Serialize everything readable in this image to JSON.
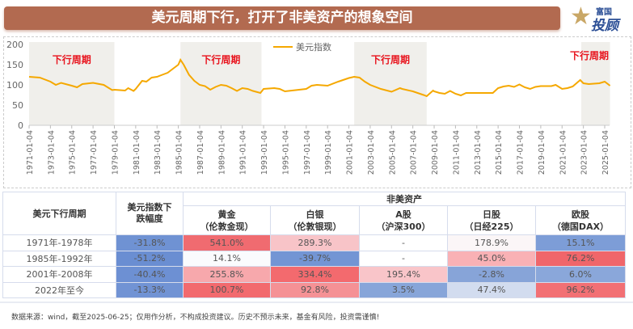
{
  "title": "美元周期下行，打开了非美资产的想象空间",
  "logo": {
    "line1": "富国",
    "line2": "投顾",
    "mark": "星"
  },
  "chart_data": {
    "type": "line",
    "legend": "美元指数",
    "legend_position": "top-center",
    "ylim": [
      0,
      200
    ],
    "yticks": [
      0,
      50,
      100,
      150,
      200
    ],
    "xticks": [
      "1971-01-04",
      "1973-01-04",
      "1975-01-04",
      "1977-01-04",
      "1979-01-04",
      "1981-01-04",
      "1983-01-04",
      "1985-01-04",
      "1987-01-04",
      "1989-01-04",
      "1991-01-04",
      "1993-01-04",
      "1995-01-04",
      "1997-01-04",
      "1999-01-04",
      "2001-01-04",
      "2003-01-04",
      "2005-01-04",
      "2007-01-04",
      "2009-01-04",
      "2011-01-04",
      "2013-01-04",
      "2015-01-04",
      "2017-01-04",
      "2019-01-04",
      "2021-01-04",
      "2023-01-04",
      "2025-01-04"
    ],
    "series_color": "#f5a800",
    "shaded_color": "#f0efeb",
    "shaded_periods": [
      {
        "start": 1971.0,
        "end": 1979.0,
        "label": "下行周期"
      },
      {
        "start": 1985.2,
        "end": 1992.8,
        "label": "下行周期"
      },
      {
        "start": 2001.5,
        "end": 2008.3,
        "label": "下行周期"
      },
      {
        "start": 2022.8,
        "end": 2025.5,
        "label": "下行周期"
      }
    ],
    "x": [
      1971,
      1972,
      1973,
      1973.5,
      1974,
      1975,
      1975.5,
      1976,
      1977,
      1978,
      1978.8,
      1979,
      1980,
      1980.3,
      1980.8,
      1981,
      1981.6,
      1982,
      1982.5,
      1983,
      1983.5,
      1984,
      1984.5,
      1985,
      1985.2,
      1985.5,
      1986,
      1986.5,
      1987,
      1987.5,
      1988,
      1988.5,
      1989,
      1989.5,
      1990,
      1990.5,
      1991,
      1991.5,
      1992,
      1992.7,
      1993,
      1994,
      1994.5,
      1995,
      1996,
      1997,
      1997.5,
      1998,
      1999,
      2000,
      2001,
      2001.5,
      2002,
      2002.5,
      2003,
      2004,
      2005,
      2005.8,
      2006,
      2007,
      2008,
      2008.3,
      2008.9,
      2009,
      2009.5,
      2010,
      2010.5,
      2011,
      2011.5,
      2012,
      2013,
      2014,
      2014.5,
      2015,
      2015.5,
      2016,
      2016.5,
      2017,
      2017.5,
      2018,
      2018.5,
      2019,
      2020,
      2020.4,
      2021,
      2021.5,
      2022,
      2022.7,
      2023,
      2023.5,
      2024,
      2024.5,
      2025,
      2025.5
    ],
    "y": [
      120,
      118,
      108,
      100,
      105,
      98,
      94,
      102,
      105,
      100,
      87,
      88,
      86,
      92,
      85,
      90,
      110,
      108,
      118,
      120,
      125,
      130,
      140,
      150,
      162,
      150,
      125,
      110,
      100,
      97,
      88,
      95,
      100,
      98,
      92,
      85,
      92,
      90,
      85,
      80,
      90,
      92,
      90,
      84,
      87,
      90,
      98,
      100,
      98,
      108,
      117,
      120,
      118,
      108,
      100,
      90,
      83,
      92,
      90,
      84,
      75,
      72,
      86,
      84,
      80,
      78,
      85,
      78,
      74,
      80,
      80,
      80,
      80,
      92,
      96,
      98,
      95,
      101,
      94,
      90,
      95,
      97,
      97,
      100,
      90,
      92,
      96,
      112,
      104,
      102,
      103,
      104,
      108,
      98
    ]
  },
  "table": {
    "col1_header": "美元下行周期",
    "col2_header": "美元指数下跌幅度",
    "group_header": "非美资产",
    "asset_headers": [
      {
        "name": "黄金",
        "sub": "（伦敦金现）"
      },
      {
        "name": "白银",
        "sub": "（伦敦银现）"
      },
      {
        "name": "A股",
        "sub": "（沪深300）"
      },
      {
        "name": "日股",
        "sub": "（日经225）"
      },
      {
        "name": "欧股",
        "sub": "（德国DAX）"
      }
    ],
    "rows": [
      {
        "period": "1971年-1978年",
        "cells": [
          "-31.8%",
          "541.0%",
          "289.3%",
          "-",
          "178.9%",
          "15.1%"
        ],
        "colors": [
          "#6f92d3",
          "#f06b70",
          "#f8c4c8",
          "#ffffff",
          "#fbf6f7",
          "#7d9dd7"
        ]
      },
      {
        "period": "1985年-1992年",
        "cells": [
          "-51.2%",
          "14.1%",
          "-39.7%",
          "-",
          "45.0%",
          "76.2%"
        ],
        "colors": [
          "#6a8ed2",
          "#fafbfd",
          "#7395d4",
          "#ffffff",
          "#f9b1b5",
          "#f0666a"
        ]
      },
      {
        "period": "2001年-2008年",
        "cells": [
          "-40.4%",
          "255.8%",
          "334.4%",
          "195.4%",
          "-2.8%",
          "6.0%"
        ],
        "colors": [
          "#6d90d3",
          "#f7a8ac",
          "#f36a6e",
          "#f9c5c9",
          "#87a4d8",
          "#8aa7da"
        ]
      },
      {
        "period": "2022年至今",
        "cells": [
          "-13.3%",
          "100.7%",
          "92.8%",
          "3.5%",
          "47.4%",
          "96.2%"
        ],
        "colors": [
          "#7193d4",
          "#f26a6e",
          "#f59195",
          "#87a5d9",
          "#d2dcef",
          "#f27074"
        ]
      }
    ]
  },
  "footer": "数据来源：wind，截至2025-06-25；仅用作分析，不构成投资建议。历史不预示未来，基金有风险，投资需谨慎!"
}
